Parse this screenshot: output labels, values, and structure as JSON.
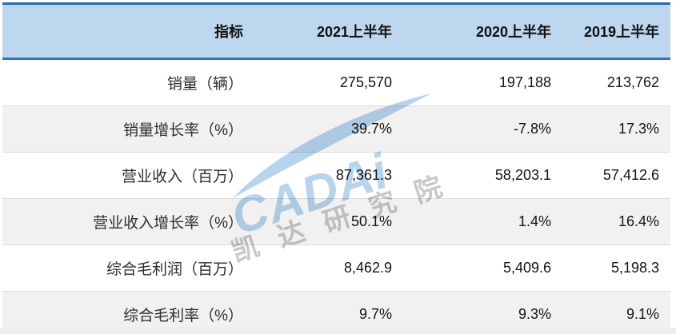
{
  "chart_data": {
    "type": "table",
    "columns": [
      "指标",
      "2021上半年",
      "2020上半年",
      "2019上半年"
    ],
    "rows": [
      {
        "label": "销量（辆）",
        "values": [
          "275,570",
          "197,188",
          "213,762"
        ]
      },
      {
        "label": "销量增长率（%）",
        "values": [
          "39.7%",
          "-7.8%",
          "17.3%"
        ]
      },
      {
        "label": "营业收入（百万）",
        "values": [
          "87,361.3",
          "58,203.1",
          "57,412.6"
        ]
      },
      {
        "label": "营业收入增长率（%）",
        "values": [
          "50.1%",
          "1.4%",
          "16.4%"
        ]
      },
      {
        "label": "综合毛利润（百万）",
        "values": [
          "8,462.9",
          "5,409.6",
          "5,198.3"
        ]
      },
      {
        "label": "综合毛利率（%）",
        "values": [
          "9.7%",
          "9.3%",
          "9.1%"
        ]
      }
    ]
  },
  "watermark": {
    "brand": "CADAi",
    "institute": "凯达研究院"
  },
  "colors": {
    "top_border": "#1E6DB3",
    "header_bg": "#BDD7EE",
    "header_rule": "#2C77B9",
    "bottom_rule": "#2273B8",
    "row_shade": "#F1F1F1",
    "row_separator": "#DBDBDB",
    "watermark_blue": "#B7D4EE",
    "watermark_gray": "#C9C9C9"
  }
}
